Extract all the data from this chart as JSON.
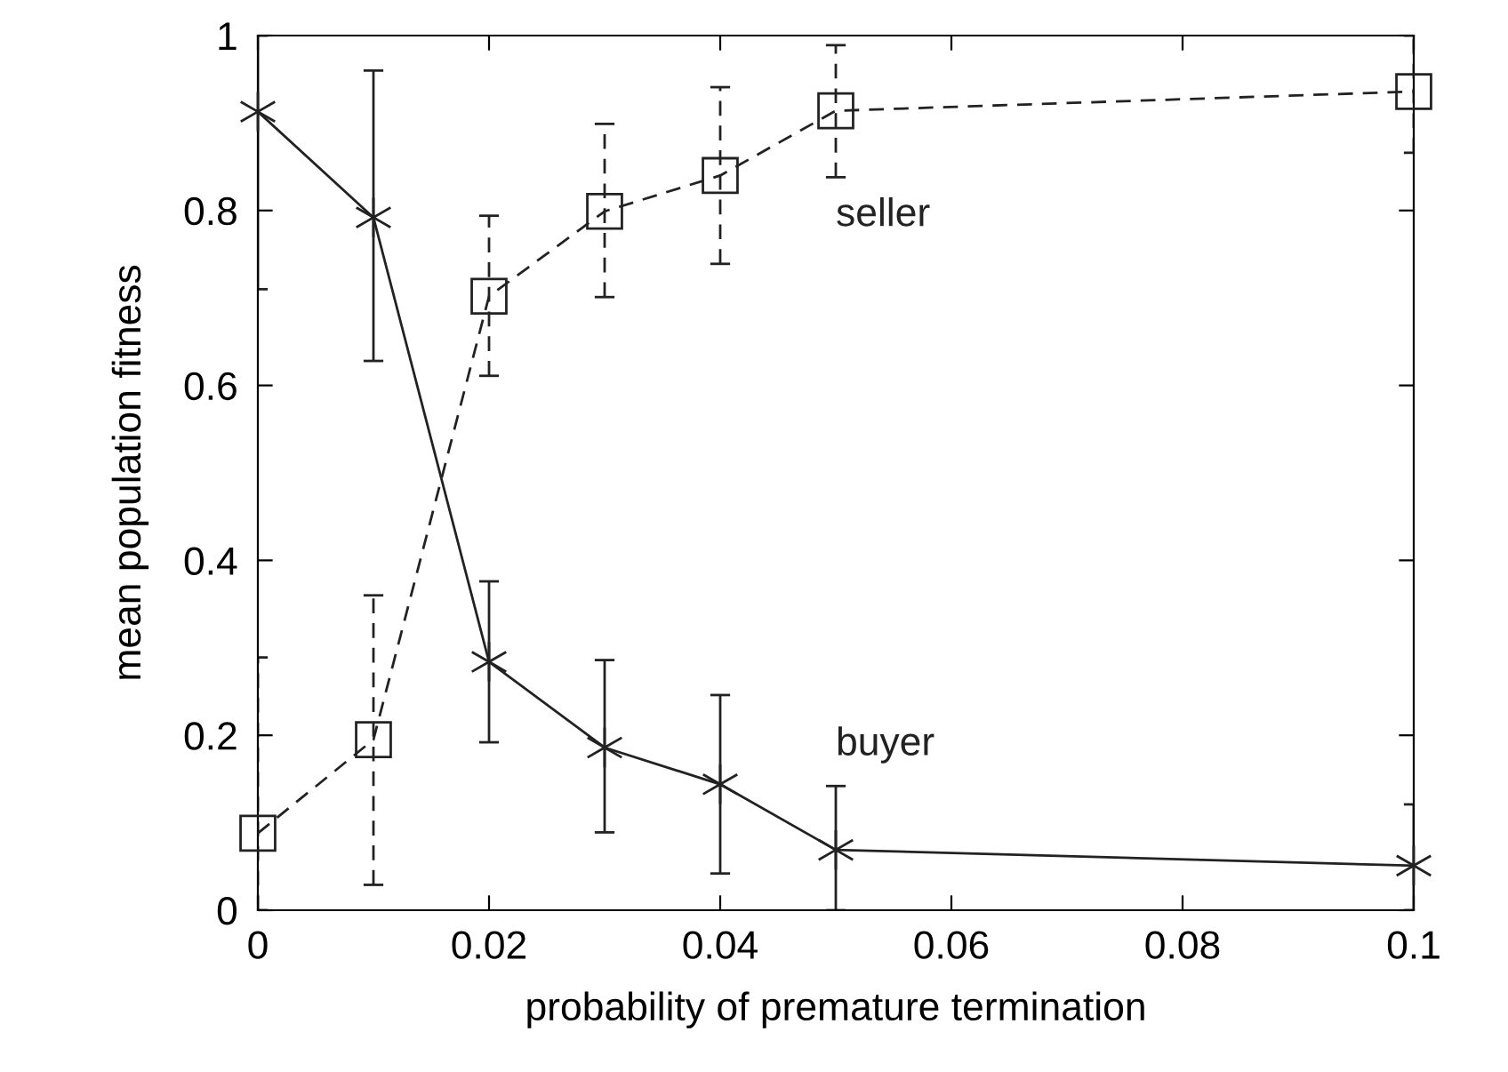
{
  "chart_data": {
    "type": "line",
    "xlabel": "probability of premature termination",
    "ylabel": "mean population fitness",
    "x": [
      0,
      0.01,
      0.02,
      0.03,
      0.04,
      0.05,
      0.1
    ],
    "series": [
      {
        "name": "buyer",
        "color": "#222222",
        "marker": "cross",
        "line_style": "solid",
        "values": [
          0.913,
          0.792,
          0.284,
          0.186,
          0.144,
          0.069,
          0.051
        ],
        "errors": [
          [
            0.71,
            1
          ],
          [
            0.628,
            0.96
          ],
          [
            0.192,
            0.376
          ],
          [
            0.089,
            0.286
          ],
          [
            0.042,
            0.246
          ],
          [
            0,
            0.142
          ],
          [
            0,
            0.121
          ]
        ]
      },
      {
        "name": "seller",
        "color": "#222222",
        "marker": "square",
        "line_style": "dashed",
        "values": [
          0.088,
          0.195,
          0.702,
          0.799,
          0.84,
          0.914,
          0.936
        ],
        "errors": [
          [
            0,
            0.289
          ],
          [
            0.029,
            0.36
          ],
          [
            0.611,
            0.794
          ],
          [
            0.701,
            0.899
          ],
          [
            0.739,
            0.941
          ],
          [
            0.838,
            0.989
          ],
          [
            0.866,
            1
          ]
        ]
      }
    ],
    "xlim": [
      0,
      0.1
    ],
    "ylim": [
      0,
      1
    ],
    "xticks": [
      0,
      0.02,
      0.04,
      0.06,
      0.08,
      0.1
    ],
    "yticks": [
      0,
      0.2,
      0.4,
      0.6,
      0.8,
      1
    ],
    "grid": false,
    "legend": false
  }
}
